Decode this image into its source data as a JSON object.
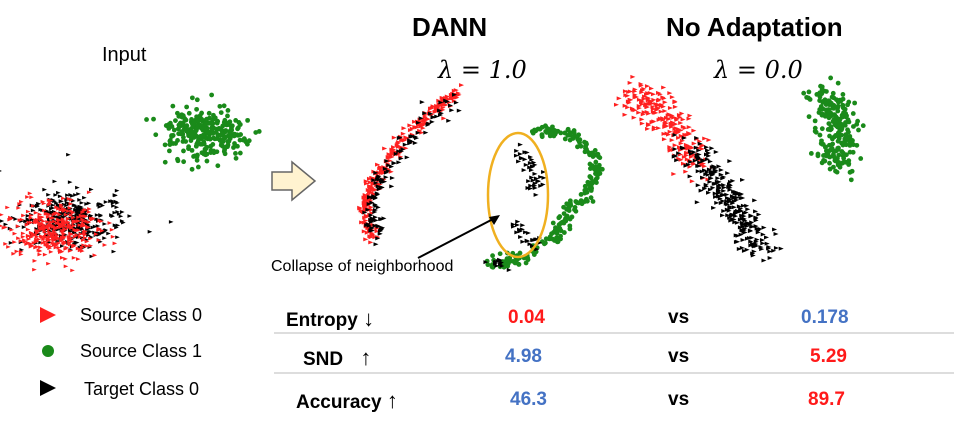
{
  "headings": {
    "input": "Input",
    "dann": "DANN",
    "no_adaptation": "No Adaptation",
    "lambda_dann": "λ = 1.0",
    "lambda_noadapt": "λ = 0.0"
  },
  "annotation": "Collapse of neighborhood",
  "legend": [
    {
      "label": "Source Class 0",
      "color": "#ff2020",
      "icon": "red-triangle-icon"
    },
    {
      "label": "Source Class 1",
      "color": "#1a8a1a",
      "icon": "green-circle-icon"
    },
    {
      "label": "Target Class 0",
      "color": "#000000",
      "icon": "black-triangle-icon"
    }
  ],
  "metrics": [
    {
      "name": "Entropy",
      "direction": "↓",
      "dann": "0.04",
      "vs": "vs",
      "noadapt": "0.178",
      "dann_color": "#ff1a1a",
      "noadapt_color": "#4472c4"
    },
    {
      "name": "SND",
      "direction": "↑",
      "dann": "4.98",
      "vs": "vs",
      "noadapt": "5.29",
      "dann_color": "#4472c4",
      "noadapt_color": "#ff1a1a"
    },
    {
      "name": "Accuracy",
      "direction": "↑",
      "dann": "46.3",
      "vs": "vs",
      "noadapt": "89.7",
      "dann_color": "#4472c4",
      "noadapt_color": "#ff1a1a"
    }
  ],
  "colors": {
    "source0": "#ff2020",
    "source1": "#1a8a1a",
    "target0": "#000000",
    "highlight_ellipse": "#f0b020",
    "arrow_fill": "#fff3d0"
  }
}
